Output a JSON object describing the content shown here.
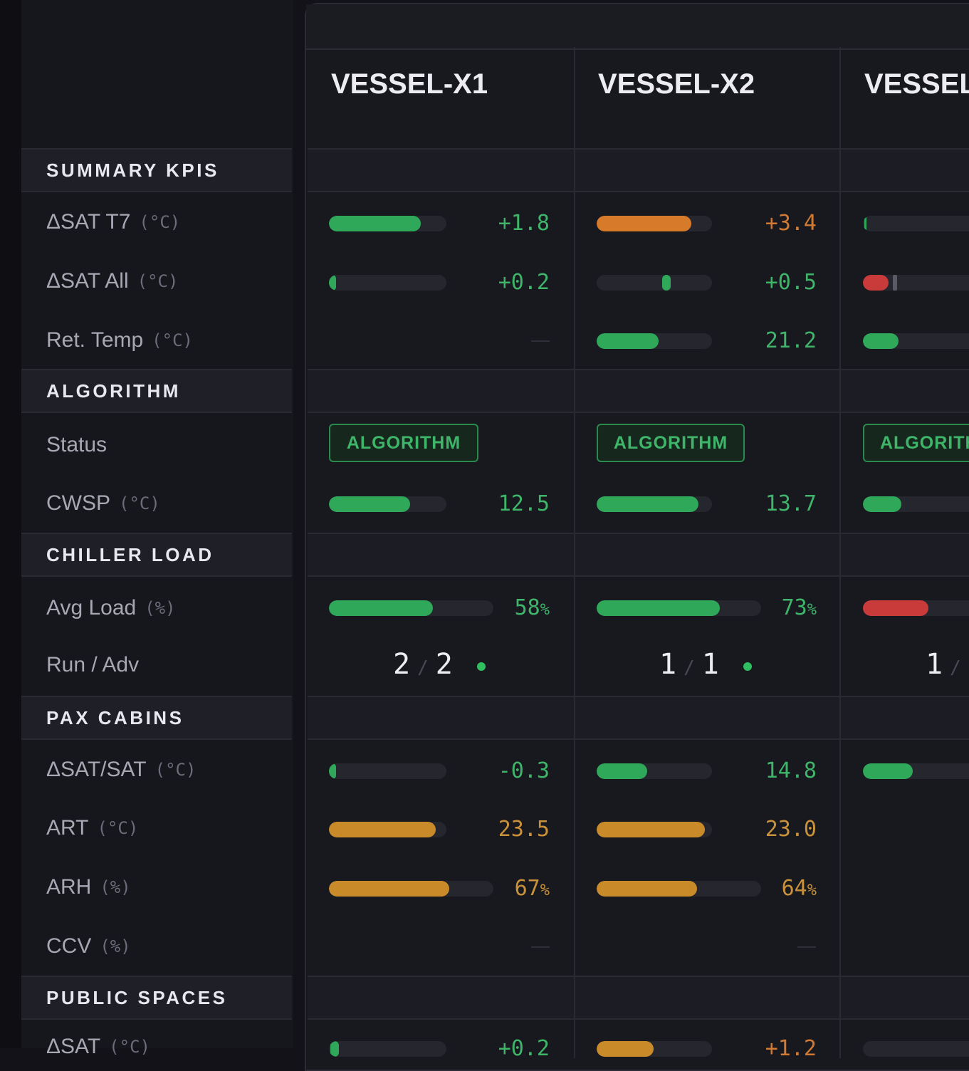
{
  "colors": {
    "green": "#2fa85a",
    "orange": "#d77a2a",
    "amber": "#c98a2a",
    "red": "#c93a3a",
    "green_text": "#3fb56a",
    "orange_text": "#d07a34",
    "amber_text": "#c9923a"
  },
  "vessels": [
    "VESSEL-X1",
    "VESSEL-X2",
    "VESSEL"
  ],
  "sections": {
    "summary": "SUMMARY KPIS",
    "algorithm": "ALGORITHM",
    "chiller": "CHILLER LOAD",
    "pax": "PAX CABINS",
    "public": "PUBLIC SPACES"
  },
  "rows": {
    "dsat_t7": {
      "label": "ΔSAT T7",
      "unit": "(°C)"
    },
    "dsat_all": {
      "label": "ΔSAT All",
      "unit": "(°C)"
    },
    "ret_temp": {
      "label": "Ret. Temp",
      "unit": "(°C)"
    },
    "status": {
      "label": "Status"
    },
    "cwsp": {
      "label": "CWSP",
      "unit": "(°C)"
    },
    "avg_load": {
      "label": "Avg Load",
      "unit": "(%)"
    },
    "run_adv": {
      "label": "Run / Adv"
    },
    "dsat_sat": {
      "label": "ΔSAT/SAT",
      "unit": "(°C)"
    },
    "art": {
      "label": "ART",
      "unit": "(°C)"
    },
    "arh": {
      "label": "ARH",
      "unit": "(%)"
    },
    "ccv": {
      "label": "CCV",
      "unit": "(%)"
    },
    "public_dsat": {
      "label": "ΔSAT",
      "unit": "(°C)"
    }
  },
  "x1": {
    "dsat_t7": {
      "value": "+1.8",
      "fill": 0.78
    },
    "dsat_all": {
      "value": "+0.2",
      "fill": 0.05
    },
    "ret_temp": {
      "value": null
    },
    "status": "ALGORITHM",
    "cwsp": {
      "value": "12.5",
      "fill": 0.69
    },
    "avg_load": {
      "value": "58",
      "unit": "%",
      "fill": 0.63
    },
    "run": "2",
    "adv": "2",
    "dsat_sat": {
      "value": "-0.3",
      "fill": 0.03
    },
    "art": {
      "value": "23.5",
      "fill": 0.91
    },
    "arh": {
      "value": "67",
      "unit": "%",
      "fill": 0.73
    },
    "ccv": {
      "value": null
    },
    "public_dsat": {
      "value": "+0.2"
    }
  },
  "x2": {
    "dsat_t7": {
      "value": "+3.4",
      "fill": 0.82
    },
    "dsat_all": {
      "value": "+0.5",
      "fill_start": 0.57,
      "fill": 0.07
    },
    "ret_temp": {
      "value": "21.2",
      "fill": 0.54
    },
    "status": "ALGORITHM",
    "cwsp": {
      "value": "13.7",
      "fill": 0.88
    },
    "avg_load": {
      "value": "73",
      "unit": "%",
      "fill": 0.75
    },
    "run": "1",
    "adv": "1",
    "dsat_sat": {
      "value": "14.8",
      "fill": 0.44
    },
    "art": {
      "value": "23.0",
      "fill": 0.94
    },
    "arh": {
      "value": "64",
      "unit": "%",
      "fill": 0.61
    },
    "ccv": {
      "value": null
    },
    "public_dsat": {
      "value": "+1.2"
    }
  },
  "x3": {
    "status": "ALGORITHM",
    "run": "1"
  }
}
